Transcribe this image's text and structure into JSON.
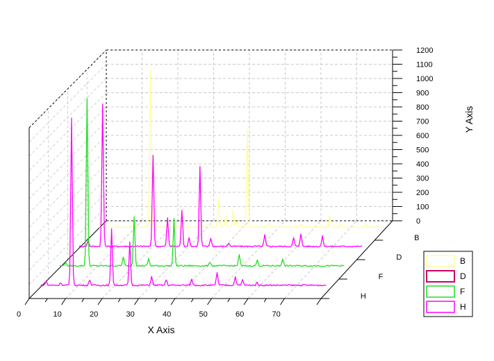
{
  "chart_data": {
    "type": "line",
    "subtype": "3d-waterfall",
    "title": "",
    "xlabel": "X Axis",
    "ylabel": "Y Axis",
    "xlim": [
      0,
      80
    ],
    "ylim": [
      0,
      1200
    ],
    "x_ticks": [
      "0",
      "10",
      "20",
      "30",
      "40",
      "50",
      "60",
      "70"
    ],
    "y_ticks": [
      "0",
      "100",
      "200",
      "300",
      "400",
      "500",
      "600",
      "700",
      "800",
      "900",
      "1000",
      "1100",
      "1200"
    ],
    "z_categories": [
      "B",
      "D",
      "F",
      "H"
    ],
    "grid": true,
    "legend": {
      "position": "right",
      "entries": [
        "B",
        "D",
        "F",
        "H"
      ]
    },
    "colors": {
      "B": "#ffff99",
      "D": "#ff00ff",
      "F": "#22dd22",
      "H": "#ff00ff",
      "D_legend_border": "#cc0066"
    },
    "series": [
      {
        "name": "B",
        "baseline": 20,
        "noise": 8,
        "peaks": [
          [
            15,
            1100
          ],
          [
            22,
            18
          ],
          [
            29,
            20
          ],
          [
            34,
            200
          ],
          [
            36,
            80
          ],
          [
            38,
            120
          ],
          [
            39,
            40
          ],
          [
            42,
            700
          ],
          [
            48,
            30
          ],
          [
            57,
            20
          ],
          [
            65,
            80
          ],
          [
            68,
            20
          ],
          [
            75,
            20
          ]
        ]
      },
      {
        "name": "D",
        "baseline": 20,
        "noise": 10,
        "peaks": [
          [
            3,
            40
          ],
          [
            7,
            1000
          ],
          [
            21,
            640
          ],
          [
            25,
            200
          ],
          [
            29,
            250
          ],
          [
            31,
            60
          ],
          [
            34,
            560
          ],
          [
            37,
            60
          ],
          [
            42,
            25
          ],
          [
            52,
            80
          ],
          [
            60,
            60
          ],
          [
            62,
            90
          ],
          [
            68,
            70
          ]
        ]
      },
      {
        "name": "F",
        "baseline": 20,
        "noise": 10,
        "peaks": [
          [
            2,
            25
          ],
          [
            8,
            1200
          ],
          [
            18,
            60
          ],
          [
            21,
            350
          ],
          [
            25,
            50
          ],
          [
            32,
            330
          ],
          [
            42,
            25
          ],
          [
            50,
            75
          ],
          [
            55,
            40
          ],
          [
            62,
            50
          ]
        ]
      },
      {
        "name": "H",
        "baseline": 20,
        "noise": 10,
        "peaks": [
          [
            2,
            30
          ],
          [
            6,
            20
          ],
          [
            9,
            1200
          ],
          [
            14,
            40
          ],
          [
            20,
            400
          ],
          [
            25,
            300
          ],
          [
            31,
            60
          ],
          [
            35,
            40
          ],
          [
            42,
            40
          ],
          [
            49,
            90
          ],
          [
            54,
            60
          ],
          [
            56,
            40
          ],
          [
            60,
            20
          ]
        ]
      }
    ]
  }
}
